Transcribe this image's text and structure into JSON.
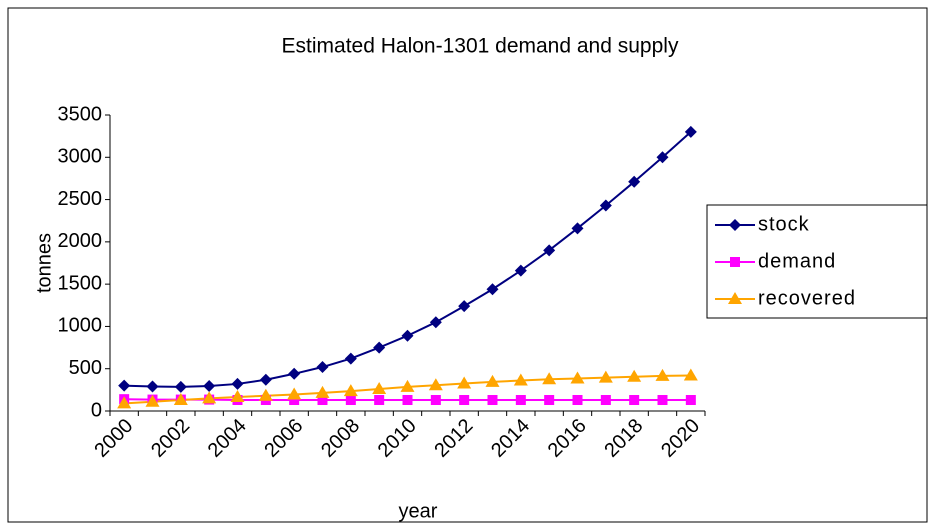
{
  "chart_data": {
    "type": "line",
    "title": "Estimated Halon-1301 demand and supply",
    "xlabel": "year",
    "ylabel": "tonnes",
    "categories": [
      "2000",
      null,
      "2002",
      null,
      "2004",
      null,
      "2006",
      null,
      "2008",
      null,
      "2010",
      null,
      "2012",
      null,
      "2014",
      null,
      "2016",
      null,
      "2018",
      null,
      "2020"
    ],
    "series": [
      {
        "name": "stock",
        "color": "#000080",
        "marker": "diamond",
        "values": [
          300,
          290,
          285,
          295,
          320,
          370,
          440,
          520,
          620,
          750,
          890,
          1050,
          1240,
          1440,
          1660,
          1900,
          2160,
          2430,
          2710,
          3000,
          3300
        ]
      },
      {
        "name": "demand",
        "color": "#ff00ff",
        "marker": "square",
        "values": [
          140,
          135,
          135,
          135,
          130,
          130,
          130,
          130,
          130,
          130,
          130,
          130,
          130,
          130,
          130,
          130,
          130,
          130,
          130,
          130,
          130
        ]
      },
      {
        "name": "recovered",
        "color": "#ffa500",
        "marker": "triangle",
        "values": [
          90,
          110,
          130,
          150,
          165,
          180,
          195,
          215,
          235,
          260,
          285,
          305,
          325,
          345,
          360,
          375,
          385,
          395,
          405,
          415,
          420
        ]
      }
    ],
    "ylim": [
      0,
      3500
    ],
    "yticks": [
      0,
      500,
      1000,
      1500,
      2000,
      2500,
      3000,
      3500
    ],
    "grid": false,
    "legend": "right"
  }
}
